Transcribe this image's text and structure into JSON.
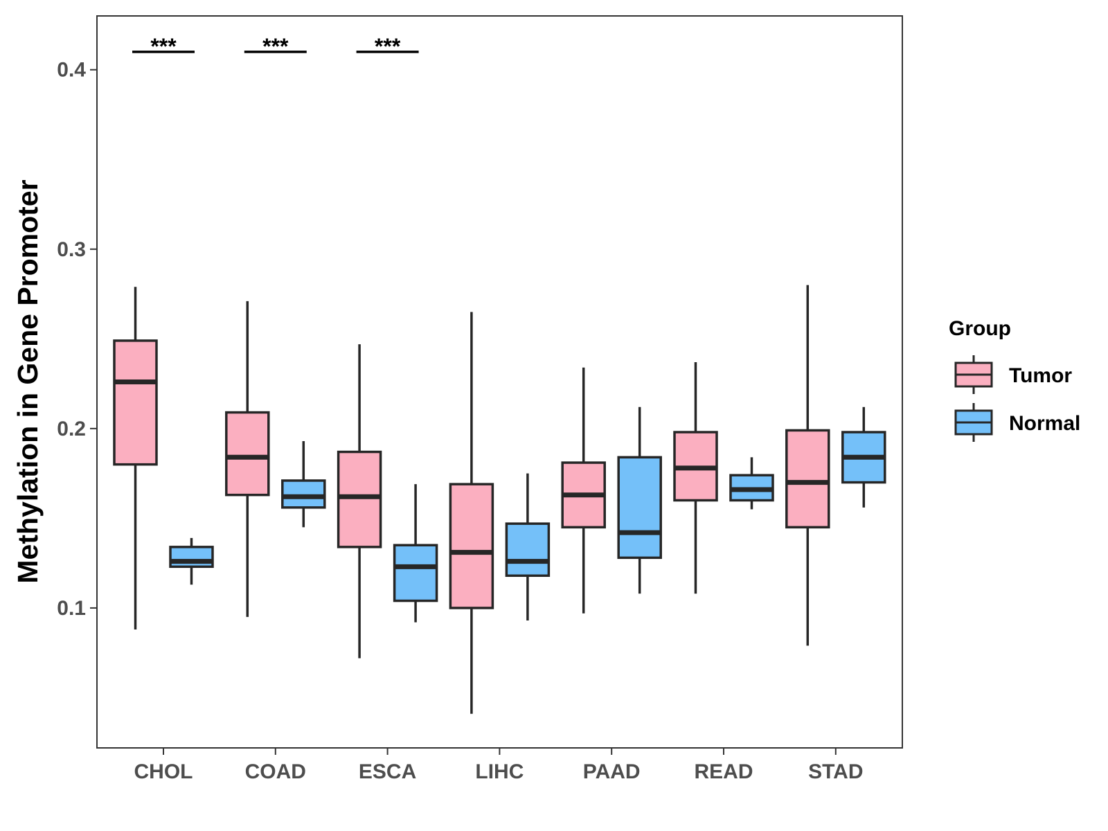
{
  "chart_data": {
    "type": "boxplot",
    "ylabel": "Methylation in Gene Promoter",
    "xlabel": "",
    "ylim": [
      0.022,
      0.43
    ],
    "yticks": [
      0.1,
      0.2,
      0.3,
      0.4
    ],
    "ytick_labels": [
      "0.1",
      "0.2",
      "0.3",
      "0.4"
    ],
    "categories": [
      "CHOL",
      "COAD",
      "ESCA",
      "LIHC",
      "PAAD",
      "READ",
      "STAD"
    ],
    "legend": {
      "title": "Group",
      "position": "right",
      "entries": [
        {
          "name": "Tumor",
          "color": "#FBAFC0"
        },
        {
          "name": "Normal",
          "color": "#74C0F9"
        }
      ]
    },
    "series": [
      {
        "name": "Tumor",
        "color": "#FBAFC0",
        "boxes": [
          {
            "min": 0.088,
            "q1": 0.18,
            "median": 0.226,
            "q3": 0.249,
            "max": 0.279
          },
          {
            "min": 0.095,
            "q1": 0.163,
            "median": 0.184,
            "q3": 0.209,
            "max": 0.271
          },
          {
            "min": 0.072,
            "q1": 0.134,
            "median": 0.162,
            "q3": 0.187,
            "max": 0.247
          },
          {
            "min": 0.041,
            "q1": 0.1,
            "median": 0.131,
            "q3": 0.169,
            "max": 0.265
          },
          {
            "min": 0.097,
            "q1": 0.145,
            "median": 0.163,
            "q3": 0.181,
            "max": 0.234
          },
          {
            "min": 0.108,
            "q1": 0.16,
            "median": 0.178,
            "q3": 0.198,
            "max": 0.237
          },
          {
            "min": 0.079,
            "q1": 0.145,
            "median": 0.17,
            "q3": 0.199,
            "max": 0.28
          }
        ]
      },
      {
        "name": "Normal",
        "color": "#74C0F9",
        "boxes": [
          {
            "min": 0.113,
            "q1": 0.123,
            "median": 0.126,
            "q3": 0.134,
            "max": 0.139
          },
          {
            "min": 0.145,
            "q1": 0.156,
            "median": 0.162,
            "q3": 0.171,
            "max": 0.193
          },
          {
            "min": 0.092,
            "q1": 0.104,
            "median": 0.123,
            "q3": 0.135,
            "max": 0.169
          },
          {
            "min": 0.093,
            "q1": 0.118,
            "median": 0.126,
            "q3": 0.147,
            "max": 0.175
          },
          {
            "min": 0.108,
            "q1": 0.128,
            "median": 0.142,
            "q3": 0.184,
            "max": 0.212
          },
          {
            "min": 0.155,
            "q1": 0.16,
            "median": 0.166,
            "q3": 0.174,
            "max": 0.184
          },
          {
            "min": 0.156,
            "q1": 0.17,
            "median": 0.184,
            "q3": 0.198,
            "max": 0.212
          }
        ]
      }
    ],
    "annotations": [
      {
        "category": "CHOL",
        "text": "***",
        "y": 0.41
      },
      {
        "category": "COAD",
        "text": "***",
        "y": 0.41
      },
      {
        "category": "ESCA",
        "text": "***",
        "y": 0.41
      }
    ]
  }
}
